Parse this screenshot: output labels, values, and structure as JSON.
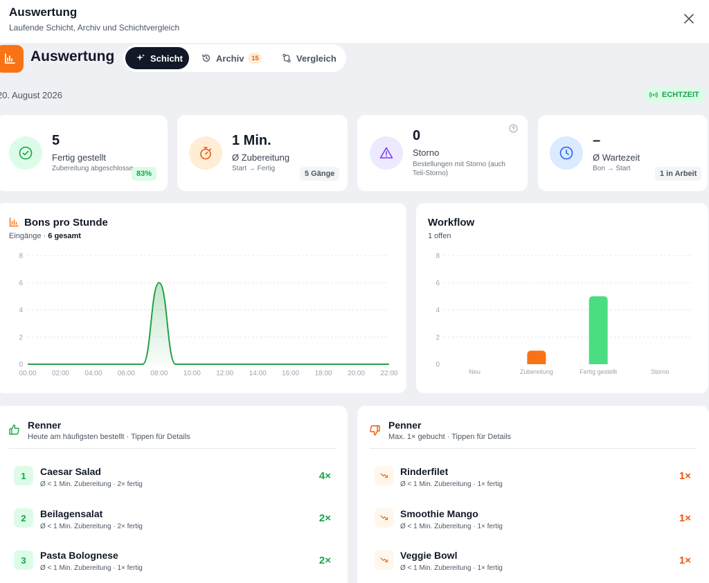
{
  "modal": {
    "title": "Auswertung",
    "subtitle": "Laufende Schicht, Archiv und Schichtvergleich"
  },
  "app": {
    "title": "Auswertung",
    "tabs": [
      {
        "label": "Schicht",
        "active": true
      },
      {
        "label": "Archiv",
        "badge": "15"
      },
      {
        "label": "Vergleich"
      }
    ]
  },
  "date": "20. August 2026",
  "live_label": "ECHTZEIT",
  "kpis": [
    {
      "value": "5",
      "label": "Fertig gestellt",
      "sub": "Zubereitung abgeschlossen",
      "pill": "83%",
      "icon": "check-circle-icon",
      "color": "#22c55e"
    },
    {
      "value": "1 Min.",
      "label": "Ø Zubereitung",
      "sub": "Start → Fertig",
      "pill": "5 Gänge",
      "icon": "stopwatch-icon",
      "color": "#f97316"
    },
    {
      "value": "0",
      "label": "Storno",
      "sub": "Bestellungen mit Storno (auch Teil-Storno)",
      "icon": "warning-icon",
      "color": "#8b5cf6"
    },
    {
      "value": "–",
      "label": "Ø Wartezeit",
      "sub": "Bon → Start",
      "pill": "1 in Arbeit",
      "icon": "clock-icon",
      "color": "#3b82f6"
    }
  ],
  "bons_panel": {
    "title": "Bons pro Stunde",
    "sub_prefix": "Eingänge ·",
    "sub_total": "6 gesamt"
  },
  "workflow_panel": {
    "title": "Workflow",
    "sub": "1 offen"
  },
  "chart_data": [
    {
      "type": "area",
      "title": "Bons pro Stunde",
      "x": [
        "00:00",
        "01:00",
        "02:00",
        "03:00",
        "04:00",
        "05:00",
        "06:00",
        "07:00",
        "08:00",
        "09:00",
        "10:00",
        "11:00",
        "12:00",
        "13:00",
        "14:00",
        "15:00",
        "16:00",
        "17:00",
        "18:00",
        "19:00",
        "20:00",
        "21:00",
        "22:00"
      ],
      "x_tick_labels": [
        "00:00",
        "02:00",
        "04:00",
        "06:00",
        "08:00",
        "10:00",
        "12:00",
        "14:00",
        "16:00",
        "18:00",
        "20:00",
        "22:00"
      ],
      "values": [
        0,
        0,
        0,
        0,
        0,
        0,
        0,
        0,
        6,
        0,
        0,
        0,
        0,
        0,
        0,
        0,
        0,
        0,
        0,
        0,
        0,
        0,
        0
      ],
      "y_ticks": [
        0,
        2,
        4,
        6,
        8
      ],
      "ylim": [
        0,
        8
      ],
      "grid": true,
      "color": "#22a045"
    },
    {
      "type": "bar",
      "title": "Workflow",
      "categories": [
        "Neu",
        "Zubereitung",
        "Fertig gestellt",
        "Storno"
      ],
      "values": [
        0,
        1,
        5,
        0
      ],
      "colors": [
        "#f97316",
        "#f97316",
        "#4ade80",
        "#9ca3af"
      ],
      "y_ticks": [
        0,
        2,
        4,
        6,
        8
      ],
      "ylim": [
        0,
        8
      ],
      "grid": true
    }
  ],
  "renner": {
    "title": "Renner",
    "sub": "Heute am häufigsten bestellt · Tippen für Details",
    "items": [
      {
        "rank": "1",
        "name": "Caesar Salad",
        "sub": "Ø < 1 Min. Zubereitung · 2× fertig",
        "count": "4×"
      },
      {
        "rank": "2",
        "name": "Beilagensalat",
        "sub": "Ø < 1 Min. Zubereitung · 2× fertig",
        "count": "2×"
      },
      {
        "rank": "3",
        "name": "Pasta Bolognese",
        "sub": "Ø < 1 Min. Zubereitung · 1× fertig",
        "count": "2×"
      }
    ]
  },
  "penner": {
    "title": "Penner",
    "sub": "Max. 1× gebucht · Tippen für Details",
    "items": [
      {
        "name": "Rinderfilet",
        "sub": "Ø < 1 Min. Zubereitung · 1× fertig",
        "count": "1×"
      },
      {
        "name": "Smoothie Mango",
        "sub": "Ø < 1 Min. Zubereitung · 1× fertig",
        "count": "1×"
      },
      {
        "name": "Veggie Bowl",
        "sub": "Ø < 1 Min. Zubereitung · 1× fertig",
        "count": "1×"
      }
    ]
  }
}
